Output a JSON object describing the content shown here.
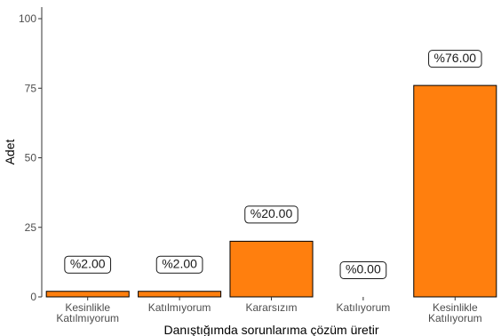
{
  "chart_data": {
    "type": "bar",
    "categories": [
      [
        "Kesinlikle",
        "Katılmıyorum"
      ],
      [
        "Katılmıyorum"
      ],
      [
        "Kararsızım"
      ],
      [
        "Katılıyorum"
      ],
      [
        "Kesinlikle",
        "Katılıyorum"
      ]
    ],
    "values": [
      2,
      2,
      20,
      0,
      76
    ],
    "data_labels": [
      "%2.00",
      "%2.00",
      "%20.00",
      "%0.00",
      "%76.00"
    ],
    "xlabel": "Danıştığımda sorunlarıma çözüm üretir",
    "ylabel": "Adet",
    "ylim": [
      0,
      100
    ],
    "yticks": [
      0,
      25,
      50,
      75,
      100
    ],
    "grid": false,
    "bar_color": "#ff7f0e",
    "bar_edge_color": "#000000"
  }
}
